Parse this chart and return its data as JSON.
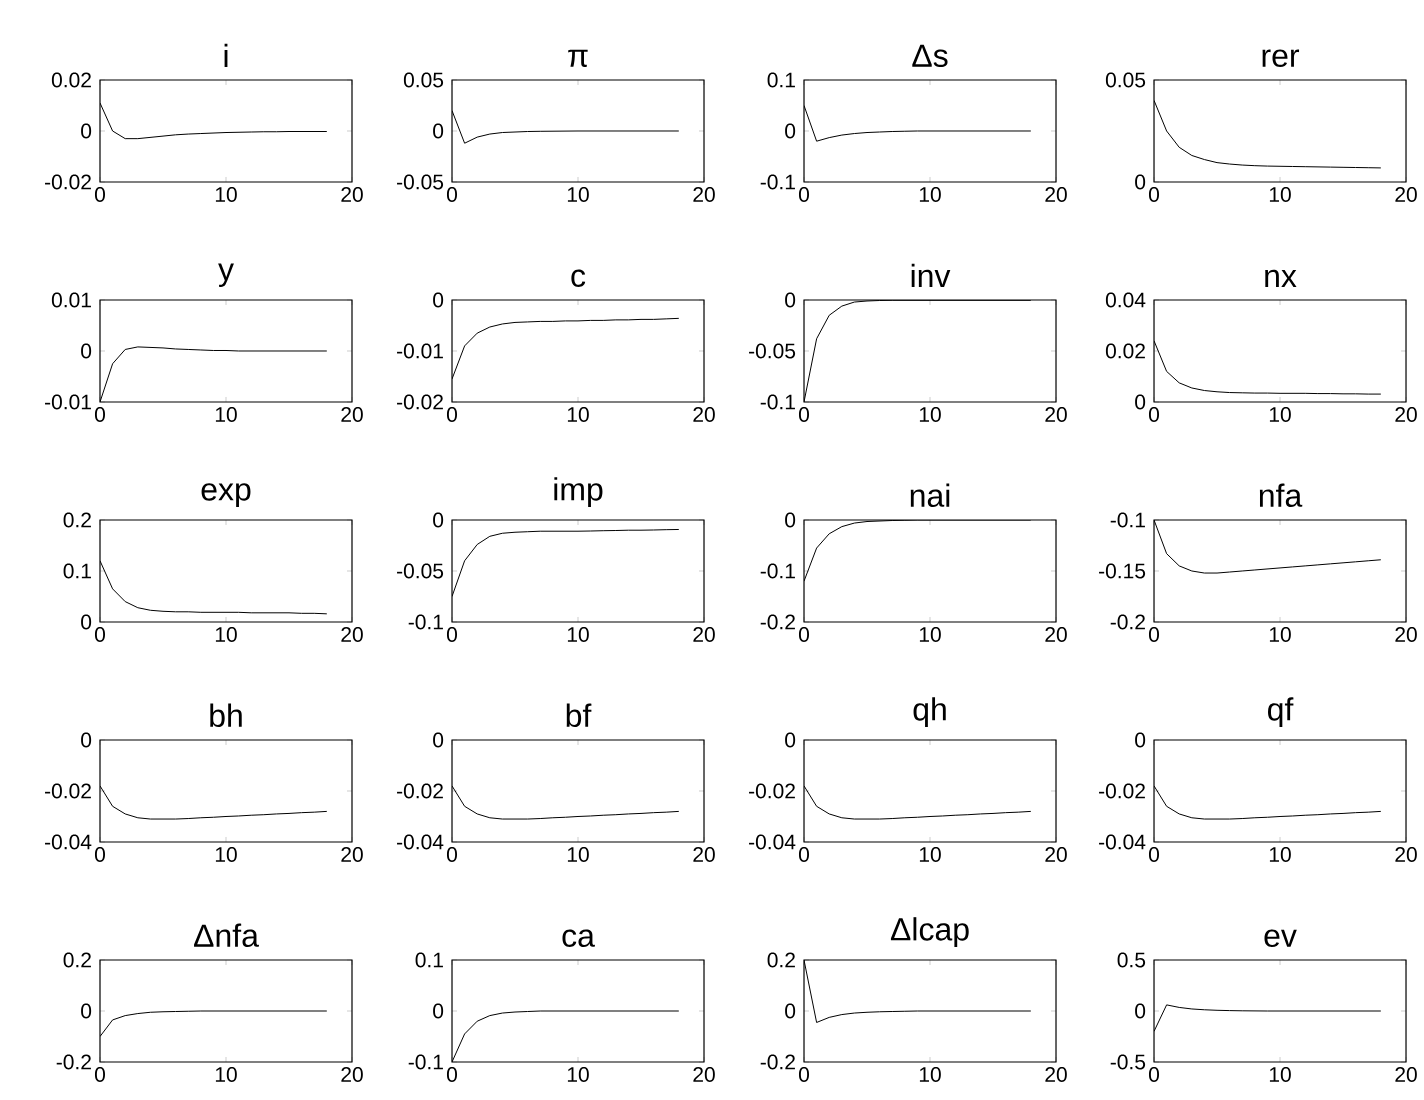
{
  "chart_data": [
    {
      "type": "line",
      "title": "i",
      "x": [
        0,
        1,
        2,
        3,
        4,
        5,
        6,
        7,
        8,
        9,
        10,
        11,
        12,
        13,
        14,
        15,
        16,
        17,
        18
      ],
      "values": [
        0.011,
        0.0,
        -0.003,
        -0.003,
        -0.0025,
        -0.002,
        -0.0015,
        -0.0012,
        -0.001,
        -0.0008,
        -0.0006,
        -0.0005,
        -0.0004,
        -0.0003,
        -0.0003,
        -0.0002,
        -0.0002,
        -0.0002,
        -0.0002
      ],
      "color": "#000000",
      "xlim": [
        0,
        20
      ],
      "xticks": [
        0,
        10,
        20
      ],
      "ylim": [
        -0.02,
        0.02
      ],
      "yticks": [
        -0.02,
        0,
        0.02
      ]
    },
    {
      "type": "line",
      "title": "π",
      "x": [
        0,
        1,
        2,
        3,
        4,
        5,
        6,
        7,
        8,
        9,
        10,
        11,
        12,
        13,
        14,
        15,
        16,
        17,
        18
      ],
      "values": [
        0.02,
        -0.012,
        -0.006,
        -0.003,
        -0.0015,
        -0.001,
        -0.0005,
        -0.0003,
        -0.0002,
        -0.0001,
        0,
        0,
        0,
        0,
        0,
        0,
        0,
        0,
        0
      ],
      "color": "#000000",
      "xlim": [
        0,
        20
      ],
      "xticks": [
        0,
        10,
        20
      ],
      "ylim": [
        -0.05,
        0.05
      ],
      "yticks": [
        -0.05,
        0,
        0.05
      ]
    },
    {
      "type": "line",
      "title": "Δs",
      "x": [
        0,
        1,
        2,
        3,
        4,
        5,
        6,
        7,
        8,
        9,
        10,
        11,
        12,
        13,
        14,
        15,
        16,
        17,
        18
      ],
      "values": [
        0.05,
        -0.02,
        -0.013,
        -0.008,
        -0.005,
        -0.003,
        -0.002,
        -0.001,
        -0.0005,
        0,
        0,
        0,
        0,
        0,
        0,
        0,
        0,
        0,
        0
      ],
      "color": "#000000",
      "xlim": [
        0,
        20
      ],
      "xticks": [
        0,
        10,
        20
      ],
      "ylim": [
        -0.1,
        0.1
      ],
      "yticks": [
        -0.1,
        0,
        0.1
      ]
    },
    {
      "type": "line",
      "title": "rer",
      "x": [
        0,
        1,
        2,
        3,
        4,
        5,
        6,
        7,
        8,
        9,
        10,
        11,
        12,
        13,
        14,
        15,
        16,
        17,
        18
      ],
      "values": [
        0.04,
        0.025,
        0.017,
        0.013,
        0.011,
        0.0095,
        0.0088,
        0.0083,
        0.008,
        0.0078,
        0.0077,
        0.0076,
        0.0075,
        0.0074,
        0.0073,
        0.0072,
        0.0071,
        0.007,
        0.0069
      ],
      "color": "#000000",
      "xlim": [
        0,
        20
      ],
      "xticks": [
        0,
        10,
        20
      ],
      "ylim": [
        0,
        0.05
      ],
      "yticks": [
        0,
        0.05
      ]
    },
    {
      "type": "line",
      "title": "y",
      "x": [
        0,
        1,
        2,
        3,
        4,
        5,
        6,
        7,
        8,
        9,
        10,
        11,
        12,
        13,
        14,
        15,
        16,
        17,
        18
      ],
      "values": [
        -0.01,
        -0.0025,
        0.0003,
        0.0008,
        0.0007,
        0.0006,
        0.0004,
        0.0003,
        0.0002,
        0.0001,
        0.0001,
        0,
        0,
        0,
        0,
        0,
        0,
        0,
        0
      ],
      "color": "#000000",
      "xlim": [
        0,
        20
      ],
      "xticks": [
        0,
        10,
        20
      ],
      "ylim": [
        -0.01,
        0.01
      ],
      "yticks": [
        -0.01,
        0,
        0.01
      ]
    },
    {
      "type": "line",
      "title": "c",
      "x": [
        0,
        1,
        2,
        3,
        4,
        5,
        6,
        7,
        8,
        9,
        10,
        11,
        12,
        13,
        14,
        15,
        16,
        17,
        18
      ],
      "values": [
        -0.0155,
        -0.009,
        -0.0065,
        -0.0053,
        -0.0047,
        -0.0044,
        -0.0043,
        -0.0042,
        -0.0042,
        -0.0041,
        -0.0041,
        -0.004,
        -0.004,
        -0.0039,
        -0.0039,
        -0.0038,
        -0.0038,
        -0.0037,
        -0.0036
      ],
      "color": "#000000",
      "xlim": [
        0,
        20
      ],
      "xticks": [
        0,
        10,
        20
      ],
      "ylim": [
        -0.02,
        0
      ],
      "yticks": [
        -0.02,
        -0.01,
        0
      ]
    },
    {
      "type": "line",
      "title": "inv",
      "x": [
        0,
        1,
        2,
        3,
        4,
        5,
        6,
        7,
        8,
        9,
        10,
        11,
        12,
        13,
        14,
        15,
        16,
        17,
        18
      ],
      "values": [
        -0.1,
        -0.038,
        -0.015,
        -0.006,
        -0.002,
        -0.001,
        -0.0005,
        -0.0003,
        -0.0003,
        -0.0003,
        -0.0003,
        -0.0003,
        -0.0003,
        -0.0003,
        -0.0003,
        -0.0003,
        -0.0003,
        -0.0003,
        -0.0003
      ],
      "color": "#000000",
      "xlim": [
        0,
        20
      ],
      "xticks": [
        0,
        10,
        20
      ],
      "ylim": [
        -0.1,
        0
      ],
      "yticks": [
        -0.1,
        -0.05,
        0
      ]
    },
    {
      "type": "line",
      "title": "nx",
      "x": [
        0,
        1,
        2,
        3,
        4,
        5,
        6,
        7,
        8,
        9,
        10,
        11,
        12,
        13,
        14,
        15,
        16,
        17,
        18
      ],
      "values": [
        0.024,
        0.012,
        0.0075,
        0.0055,
        0.0045,
        0.004,
        0.0037,
        0.0036,
        0.0035,
        0.0035,
        0.0034,
        0.0034,
        0.0034,
        0.0033,
        0.0033,
        0.0032,
        0.0032,
        0.0031,
        0.0031
      ],
      "color": "#000000",
      "xlim": [
        0,
        20
      ],
      "xticks": [
        0,
        10,
        20
      ],
      "ylim": [
        0,
        0.04
      ],
      "yticks": [
        0,
        0.02,
        0.04
      ]
    },
    {
      "type": "line",
      "title": "exp",
      "x": [
        0,
        1,
        2,
        3,
        4,
        5,
        6,
        7,
        8,
        9,
        10,
        11,
        12,
        13,
        14,
        15,
        16,
        17,
        18
      ],
      "values": [
        0.12,
        0.065,
        0.04,
        0.028,
        0.023,
        0.021,
        0.02,
        0.02,
        0.019,
        0.019,
        0.019,
        0.019,
        0.018,
        0.018,
        0.018,
        0.018,
        0.017,
        0.017,
        0.016
      ],
      "color": "#000000",
      "xlim": [
        0,
        20
      ],
      "xticks": [
        0,
        10,
        20
      ],
      "ylim": [
        0,
        0.2
      ],
      "yticks": [
        0,
        0.1,
        0.2
      ]
    },
    {
      "type": "line",
      "title": "imp",
      "x": [
        0,
        1,
        2,
        3,
        4,
        5,
        6,
        7,
        8,
        9,
        10,
        11,
        12,
        13,
        14,
        15,
        16,
        17,
        18
      ],
      "values": [
        -0.075,
        -0.04,
        -0.024,
        -0.016,
        -0.013,
        -0.012,
        -0.0115,
        -0.011,
        -0.011,
        -0.011,
        -0.011,
        -0.0108,
        -0.0105,
        -0.0103,
        -0.01,
        -0.01,
        -0.0098,
        -0.0095,
        -0.0093
      ],
      "color": "#000000",
      "xlim": [
        0,
        20
      ],
      "xticks": [
        0,
        10,
        20
      ],
      "ylim": [
        -0.1,
        0
      ],
      "yticks": [
        -0.1,
        -0.05,
        0
      ]
    },
    {
      "type": "line",
      "title": "nai",
      "x": [
        0,
        1,
        2,
        3,
        4,
        5,
        6,
        7,
        8,
        9,
        10,
        11,
        12,
        13,
        14,
        15,
        16,
        17,
        18
      ],
      "values": [
        -0.12,
        -0.055,
        -0.027,
        -0.013,
        -0.006,
        -0.003,
        -0.002,
        -0.001,
        -0.0005,
        0,
        0,
        0,
        0,
        0,
        0,
        0,
        0,
        0,
        0
      ],
      "color": "#000000",
      "xlim": [
        0,
        20
      ],
      "xticks": [
        0,
        10,
        20
      ],
      "ylim": [
        -0.2,
        0
      ],
      "yticks": [
        -0.2,
        -0.1,
        0
      ]
    },
    {
      "type": "line",
      "title": "nfa",
      "x": [
        0,
        1,
        2,
        3,
        4,
        5,
        6,
        7,
        8,
        9,
        10,
        11,
        12,
        13,
        14,
        15,
        16,
        17,
        18
      ],
      "values": [
        -0.1,
        -0.133,
        -0.145,
        -0.15,
        -0.152,
        -0.152,
        -0.151,
        -0.15,
        -0.149,
        -0.148,
        -0.147,
        -0.146,
        -0.145,
        -0.144,
        -0.143,
        -0.142,
        -0.141,
        -0.14,
        -0.139
      ],
      "color": "#000000",
      "xlim": [
        0,
        20
      ],
      "xticks": [
        0,
        10,
        20
      ],
      "ylim": [
        -0.2,
        -0.1
      ],
      "yticks": [
        -0.2,
        -0.15,
        -0.1
      ]
    },
    {
      "type": "line",
      "title": "bh",
      "x": [
        0,
        1,
        2,
        3,
        4,
        5,
        6,
        7,
        8,
        9,
        10,
        11,
        12,
        13,
        14,
        15,
        16,
        17,
        18
      ],
      "values": [
        -0.018,
        -0.026,
        -0.029,
        -0.0305,
        -0.031,
        -0.031,
        -0.031,
        -0.0308,
        -0.0305,
        -0.0303,
        -0.03,
        -0.0298,
        -0.0295,
        -0.0293,
        -0.029,
        -0.0288,
        -0.0285,
        -0.0283,
        -0.028
      ],
      "color": "#000000",
      "xlim": [
        0,
        20
      ],
      "xticks": [
        0,
        10,
        20
      ],
      "ylim": [
        -0.04,
        0
      ],
      "yticks": [
        -0.04,
        -0.02,
        0
      ]
    },
    {
      "type": "line",
      "title": "bf",
      "x": [
        0,
        1,
        2,
        3,
        4,
        5,
        6,
        7,
        8,
        9,
        10,
        11,
        12,
        13,
        14,
        15,
        16,
        17,
        18
      ],
      "values": [
        -0.018,
        -0.026,
        -0.029,
        -0.0305,
        -0.031,
        -0.031,
        -0.031,
        -0.0308,
        -0.0305,
        -0.0303,
        -0.03,
        -0.0298,
        -0.0295,
        -0.0293,
        -0.029,
        -0.0288,
        -0.0285,
        -0.0283,
        -0.028
      ],
      "color": "#000000",
      "xlim": [
        0,
        20
      ],
      "xticks": [
        0,
        10,
        20
      ],
      "ylim": [
        -0.04,
        0
      ],
      "yticks": [
        -0.04,
        -0.02,
        0
      ]
    },
    {
      "type": "line",
      "title": "qh",
      "x": [
        0,
        1,
        2,
        3,
        4,
        5,
        6,
        7,
        8,
        9,
        10,
        11,
        12,
        13,
        14,
        15,
        16,
        17,
        18
      ],
      "values": [
        -0.018,
        -0.026,
        -0.029,
        -0.0305,
        -0.031,
        -0.031,
        -0.031,
        -0.0308,
        -0.0305,
        -0.0303,
        -0.03,
        -0.0298,
        -0.0295,
        -0.0293,
        -0.029,
        -0.0288,
        -0.0285,
        -0.0283,
        -0.028
      ],
      "color": "#000000",
      "xlim": [
        0,
        20
      ],
      "xticks": [
        0,
        10,
        20
      ],
      "ylim": [
        -0.04,
        0
      ],
      "yticks": [
        -0.04,
        -0.02,
        0
      ]
    },
    {
      "type": "line",
      "title": "qf",
      "x": [
        0,
        1,
        2,
        3,
        4,
        5,
        6,
        7,
        8,
        9,
        10,
        11,
        12,
        13,
        14,
        15,
        16,
        17,
        18
      ],
      "values": [
        -0.018,
        -0.026,
        -0.029,
        -0.0305,
        -0.031,
        -0.031,
        -0.031,
        -0.0308,
        -0.0305,
        -0.0303,
        -0.03,
        -0.0298,
        -0.0295,
        -0.0293,
        -0.029,
        -0.0288,
        -0.0285,
        -0.0283,
        -0.028
      ],
      "color": "#000000",
      "xlim": [
        0,
        20
      ],
      "xticks": [
        0,
        10,
        20
      ],
      "ylim": [
        -0.04,
        0
      ],
      "yticks": [
        -0.04,
        -0.02,
        0
      ]
    },
    {
      "type": "line",
      "title": "Δnfa",
      "x": [
        0,
        1,
        2,
        3,
        4,
        5,
        6,
        7,
        8,
        9,
        10,
        11,
        12,
        13,
        14,
        15,
        16,
        17,
        18
      ],
      "values": [
        -0.1,
        -0.035,
        -0.018,
        -0.01,
        -0.005,
        -0.003,
        -0.002,
        -0.001,
        0,
        0,
        0,
        0,
        0,
        0,
        0,
        0,
        0,
        0,
        0
      ],
      "color": "#000000",
      "xlim": [
        0,
        20
      ],
      "xticks": [
        0,
        10,
        20
      ],
      "ylim": [
        -0.2,
        0.2
      ],
      "yticks": [
        -0.2,
        0,
        0.2
      ]
    },
    {
      "type": "line",
      "title": "ca",
      "x": [
        0,
        1,
        2,
        3,
        4,
        5,
        6,
        7,
        8,
        9,
        10,
        11,
        12,
        13,
        14,
        15,
        16,
        17,
        18
      ],
      "values": [
        -0.1,
        -0.045,
        -0.02,
        -0.009,
        -0.004,
        -0.002,
        -0.001,
        0,
        0,
        0,
        0,
        0,
        0,
        0,
        0,
        0,
        0,
        0,
        0
      ],
      "color": "#000000",
      "xlim": [
        0,
        20
      ],
      "xticks": [
        0,
        10,
        20
      ],
      "ylim": [
        -0.1,
        0.1
      ],
      "yticks": [
        -0.1,
        0,
        0.1
      ]
    },
    {
      "type": "line",
      "title": "Δlcap",
      "x": [
        0,
        1,
        2,
        3,
        4,
        5,
        6,
        7,
        8,
        9,
        10,
        11,
        12,
        13,
        14,
        15,
        16,
        17,
        18
      ],
      "values": [
        0.2,
        -0.045,
        -0.025,
        -0.014,
        -0.008,
        -0.005,
        -0.003,
        -0.002,
        -0.001,
        0,
        0,
        0,
        0,
        0,
        0,
        0,
        0,
        0,
        0
      ],
      "color": "#000000",
      "xlim": [
        0,
        20
      ],
      "xticks": [
        0,
        10,
        20
      ],
      "ylim": [
        -0.2,
        0.2
      ],
      "yticks": [
        -0.2,
        0,
        0.2
      ]
    },
    {
      "type": "line",
      "title": "ev",
      "x": [
        0,
        1,
        2,
        3,
        4,
        5,
        6,
        7,
        8,
        9,
        10,
        11,
        12,
        13,
        14,
        15,
        16,
        17,
        18
      ],
      "values": [
        -0.2,
        0.06,
        0.035,
        0.02,
        0.012,
        0.007,
        0.004,
        0.002,
        0.001,
        0,
        0,
        0,
        0,
        0,
        0,
        0,
        0,
        0,
        0
      ],
      "color": "#000000",
      "xlim": [
        0,
        20
      ],
      "xticks": [
        0,
        10,
        20
      ],
      "ylim": [
        -0.5,
        0.5
      ],
      "yticks": [
        -0.5,
        0,
        0.5
      ]
    }
  ]
}
